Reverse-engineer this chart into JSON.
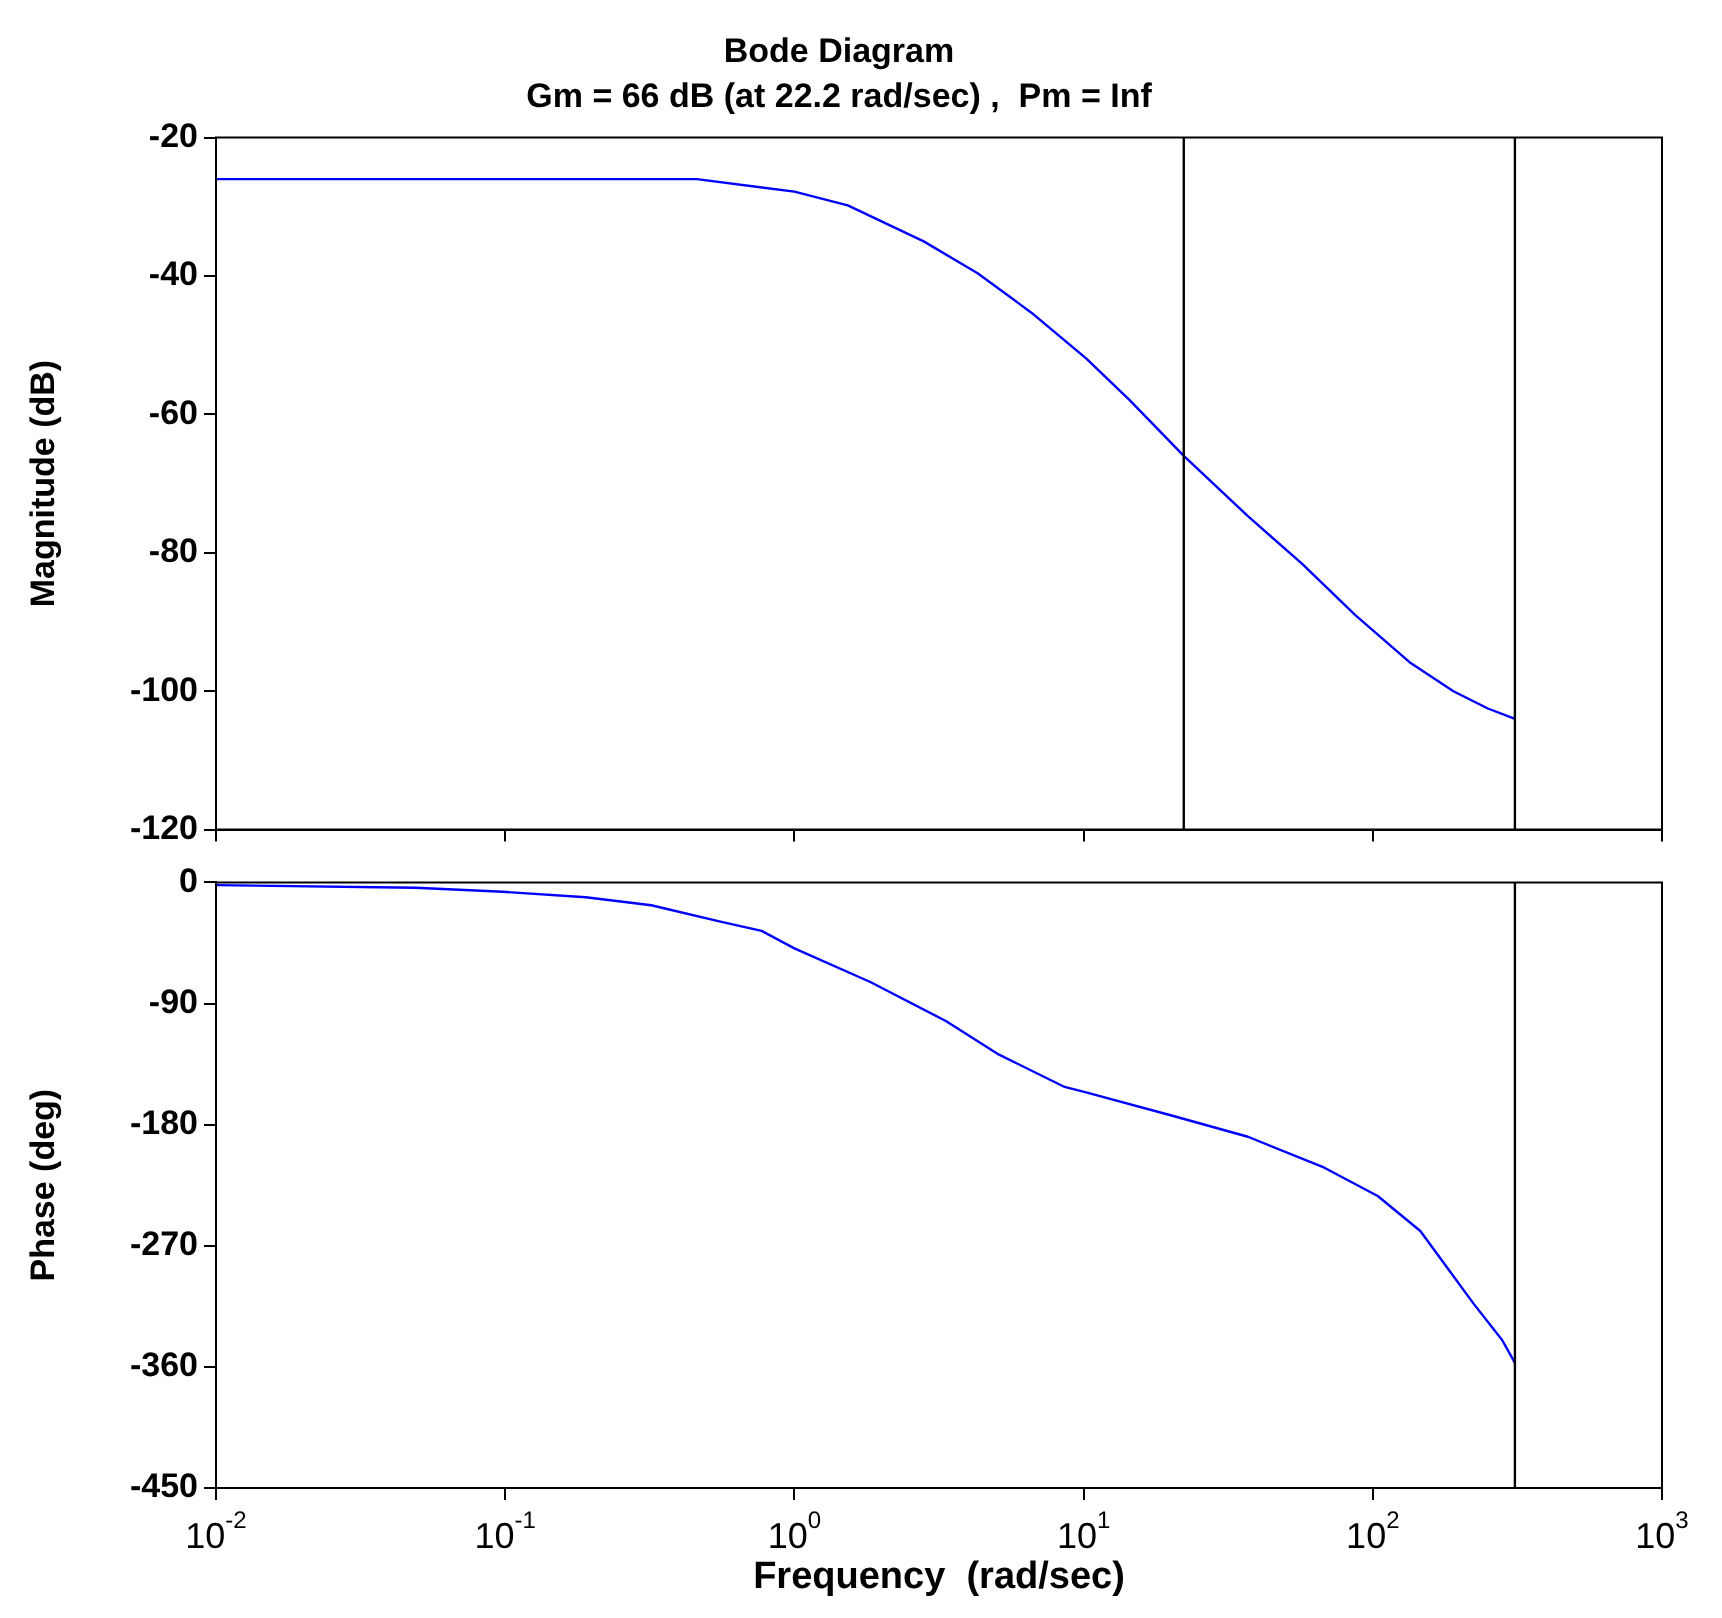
{
  "chart_data": [
    {
      "type": "line",
      "title": "Bode Diagram",
      "subtitle": "Gm = 66 dB (at 22.2 rad/sec) ,  Pm = Inf",
      "ylabel": "Magnitude (dB)",
      "log": "x",
      "xlim": [
        0.01,
        1000
      ],
      "ylim": [
        -120,
        -20
      ],
      "yticks": [
        -120,
        -100,
        -80,
        -60,
        -40,
        -20
      ],
      "xticks": [
        0.01,
        0.1,
        1,
        10,
        100,
        1000
      ],
      "tick_labels": "y",
      "grid": false,
      "marker": "none",
      "line_style": "solid",
      "series": [
        {
          "color": "#0000ff",
          "x": [
            0.01,
            0.1,
            0.46,
            1.0,
            1.53,
            2.8,
            4.3,
            6.6,
            10.2,
            14.4,
            22.2,
            37,
            57,
            87,
            134,
            190,
            250,
            310
          ],
          "values": [
            -26,
            -26,
            -26,
            -27.8,
            -29.8,
            -35,
            -39.6,
            -45.3,
            -51.9,
            -57.9,
            -66,
            -74.7,
            -81.6,
            -89,
            -95.8,
            -100,
            -102.5,
            -104
          ]
        }
      ],
      "ref_lines": [
        {
          "axis": "x",
          "value": 22.2,
          "color": "#000000"
        },
        {
          "axis": "x",
          "value": 310,
          "color": "#000000"
        }
      ]
    },
    {
      "type": "line",
      "xlabel": "Frequency  (rad/sec)",
      "ylabel": "Phase (deg)",
      "log": "x",
      "xlim": [
        0.01,
        1000
      ],
      "ylim": [
        -450,
        0
      ],
      "yticks": [
        -450,
        -360,
        -270,
        -180,
        -90,
        0
      ],
      "xticks": [
        {
          "value": 0.01,
          "label": "10$^{-2}$"
        },
        {
          "value": 0.1,
          "label": "10$^{-1}$"
        },
        {
          "value": 1,
          "label": "10$^{0}$"
        },
        {
          "value": 10,
          "label": "10$^{1}$"
        },
        {
          "value": 100,
          "label": "10$^{2}$"
        },
        {
          "value": 1000,
          "label": "10$^{3}$"
        }
      ],
      "grid": false,
      "marker": "none",
      "line_style": "solid",
      "series": [
        {
          "color": "#0000ff",
          "x": [
            0.01,
            0.049,
            0.098,
            0.19,
            0.32,
            0.55,
            0.77,
            1.0,
            1.83,
            3.34,
            5.1,
            8.6,
            10.2,
            20,
            37,
            68,
            104,
            146,
            223,
            280,
            310
          ],
          "values": [
            -2,
            -4,
            -7,
            -11,
            -17,
            -29,
            -36,
            -49,
            -74,
            -103,
            -128,
            -152,
            -156,
            -173,
            -189,
            -212,
            -233,
            -259,
            -313,
            -340,
            -357
          ]
        }
      ],
      "ref_lines": [
        {
          "axis": "x",
          "value": 310,
          "color": "#000000"
        }
      ]
    }
  ]
}
